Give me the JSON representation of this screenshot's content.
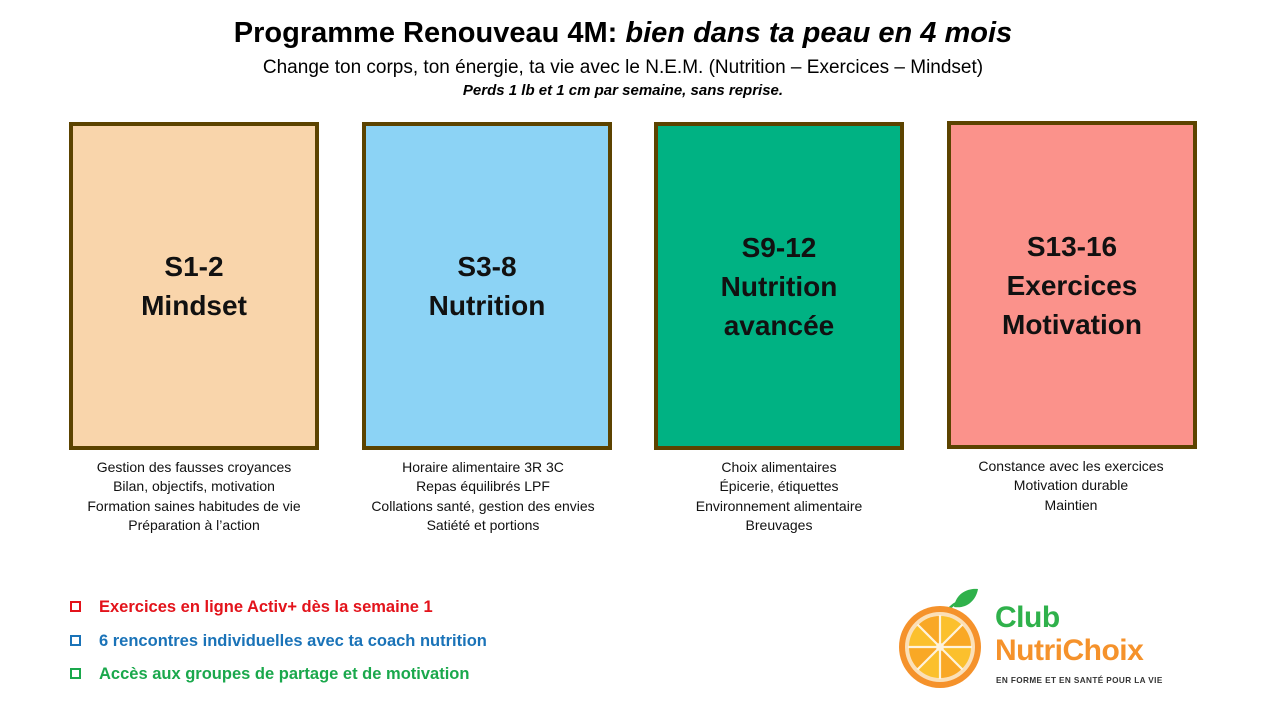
{
  "header": {
    "title_main": "Programme Renouveau 4M: ",
    "title_italic": "bien dans ta peau en 4 mois",
    "subtitle": "Change ton corps, ton énergie, ta vie avec le N.E.M. (Nutrition – Exercices – Mindset)",
    "tagline": "Perds 1 lb et 1 cm par semaine, sans reprise."
  },
  "phases": [
    {
      "lines": [
        "S1-2",
        "Mindset"
      ],
      "color": "#f9d5ab",
      "details": [
        "Gestion des fausses croyances",
        "Bilan, objectifs, motivation",
        "Formation saines habitudes de vie",
        "Préparation à l’action"
      ]
    },
    {
      "lines": [
        "S3-8",
        "Nutrition"
      ],
      "color": "#8cd3f5",
      "details": [
        "Horaire alimentaire 3R 3C",
        "Repas équilibrés LPF",
        "Collations santé, gestion des envies",
        "Satiété et portions"
      ]
    },
    {
      "lines": [
        "S9-12",
        "Nutrition",
        "avancée"
      ],
      "color": "#00b283",
      "details": [
        "Choix alimentaires",
        "Épicerie, étiquettes",
        "Environnement alimentaire",
        "Breuvages"
      ]
    },
    {
      "lines": [
        "S13-16",
        "Exercices",
        "Motivation"
      ],
      "color": "#fb928b",
      "details": [
        "Constance avec les exercices",
        "Motivation durable",
        "Maintien"
      ]
    }
  ],
  "bullets": [
    {
      "text": "Exercices en ligne Activ+ dès la semaine 1",
      "color": "#e3131b",
      "icon": "checkbox-icon"
    },
    {
      "text": "6 rencontres individuelles avec ta coach nutrition",
      "color": "#1a73b8",
      "icon": "checkbox-icon"
    },
    {
      "text": "Accès aux groupes de partage et de motivation",
      "color": "#1aa84c",
      "icon": "checkbox-icon"
    }
  ],
  "logo": {
    "word1": "Club",
    "word2": "NutriChoix",
    "tagline": "EN FORME ET EN SANTÉ POUR LA VIE",
    "icon": "orange-slice-icon",
    "green": "#2fb14b",
    "orange": "#f5922b"
  },
  "border_color": "#5c4300"
}
